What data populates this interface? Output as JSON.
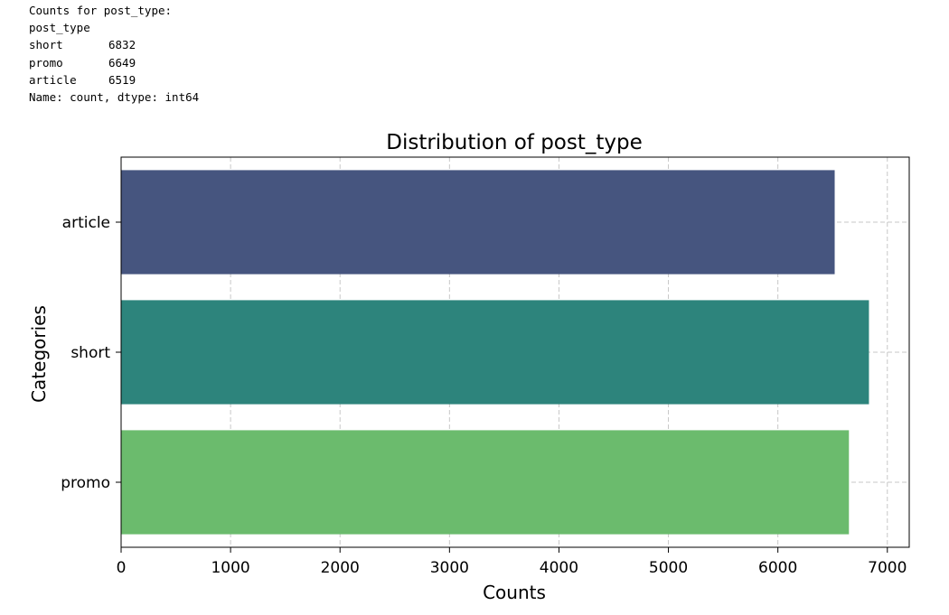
{
  "output": {
    "header_line": "Counts for post_type:",
    "index_name": "post_type",
    "rows": [
      {
        "label": "short",
        "value": "6832"
      },
      {
        "label": "promo",
        "value": "6649"
      },
      {
        "label": "article",
        "value": "6519"
      }
    ],
    "footer_line": "Name: count, dtype: int64"
  },
  "chart_data": {
    "type": "bar",
    "orientation": "horizontal",
    "title": "Distribution of post_type",
    "xlabel": "Counts",
    "ylabel": "Categories",
    "categories": [
      "article",
      "short",
      "promo"
    ],
    "values": [
      6519,
      6832,
      6649
    ],
    "colors": [
      "#46557f",
      "#2d847c",
      "#6bbb6d"
    ],
    "xlim": [
      0,
      7200
    ],
    "xticks": [
      0,
      1000,
      2000,
      3000,
      4000,
      5000,
      6000,
      7000
    ],
    "grid": true,
    "grid_style": "dashed",
    "legend": false
  }
}
